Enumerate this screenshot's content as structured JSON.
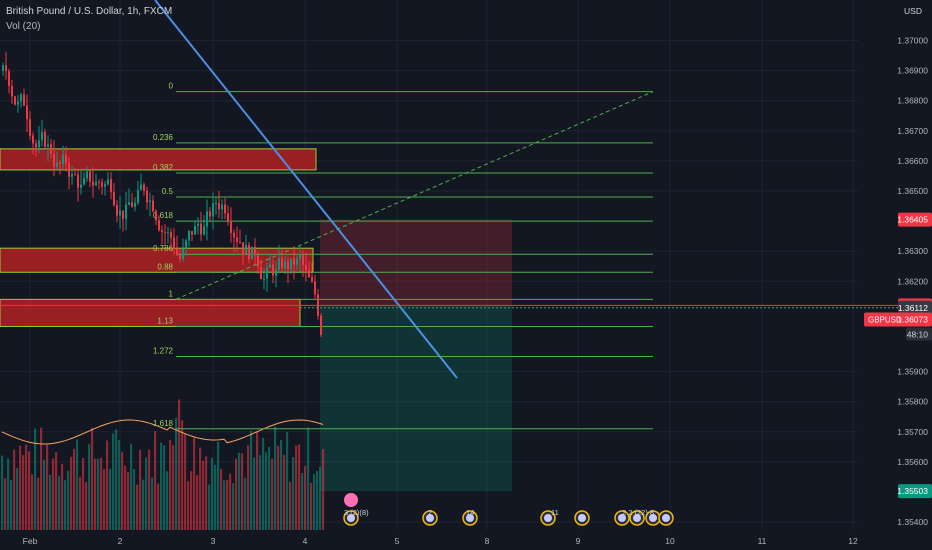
{
  "header": {
    "title": "British Pound / U.S. Dollar, 1h, FXCM",
    "volume_label": "Vol (20)"
  },
  "axis": {
    "currency": "USD",
    "ticks": [
      "1.37000",
      "1.36900",
      "1.36800",
      "1.36700",
      "1.36600",
      "1.36500",
      "1.36300",
      "1.36200",
      "1.35900",
      "1.35800",
      "1.35700",
      "1.35600",
      "1.35400"
    ],
    "tick_values": [
      1.37,
      1.369,
      1.368,
      1.367,
      1.366,
      1.365,
      1.363,
      1.362,
      1.359,
      1.358,
      1.357,
      1.356,
      1.354
    ],
    "x_labels": [
      "Feb",
      "2",
      "3",
      "4",
      "5",
      "8",
      "9",
      "10",
      "11",
      "12"
    ]
  },
  "price_tags": {
    "stop": {
      "label": "1.36405",
      "value": 1.36405,
      "color": "#f23645"
    },
    "entry": {
      "label": "1.36120",
      "value": 1.3612,
      "color": "#f23645"
    },
    "cross": {
      "label": "1.36112",
      "value": 1.36112
    },
    "last_symbol": "GBPUSD",
    "last_price": "1.36073",
    "last_value": 1.36073,
    "countdown": "48:10",
    "target": {
      "label": "1.35503",
      "value": 1.35503,
      "color": "#089981"
    }
  },
  "chart_data": {
    "type": "candlestick",
    "symbol": "GBPUSD",
    "interval": "1h",
    "y_range": [
      1.3537,
      1.3714
    ],
    "fibonacci": {
      "levels": [
        {
          "ratio": "0",
          "price": 1.3683
        },
        {
          "ratio": "0.236",
          "price": 1.3666
        },
        {
          "ratio": "0.382",
          "price": 1.3656
        },
        {
          "ratio": "0.5",
          "price": 1.3648
        },
        {
          "ratio": "0.618",
          "price": 1.364
        },
        {
          "ratio": "0.786",
          "price": 1.3629
        },
        {
          "ratio": "0.88",
          "price": 1.3623
        },
        {
          "ratio": "1",
          "price": 1.3614
        },
        {
          "ratio": "1.13",
          "price": 1.3605
        },
        {
          "ratio": "1.272",
          "price": 1.3595
        },
        {
          "ratio": "1.618",
          "price": 1.3571
        }
      ],
      "color": "#4caf50"
    },
    "zones": [
      {
        "top": 1.3664,
        "bottom": 1.3657
      },
      {
        "top": 1.3631,
        "bottom": 1.3623
      },
      {
        "top": 1.3614,
        "bottom": 1.3605
      }
    ],
    "position": {
      "stop": 1.36405,
      "entry": 1.3612,
      "target": 1.35503
    },
    "volume_ma_color": "#f7a35c",
    "up_color": "#089981",
    "down_color": "#f23645"
  },
  "events": {
    "cluster_1": "3  (2)(8)",
    "e_2": "2",
    "e_14": "14",
    "e_11": "11",
    "cluster_4": "2  2  (22)  8"
  }
}
